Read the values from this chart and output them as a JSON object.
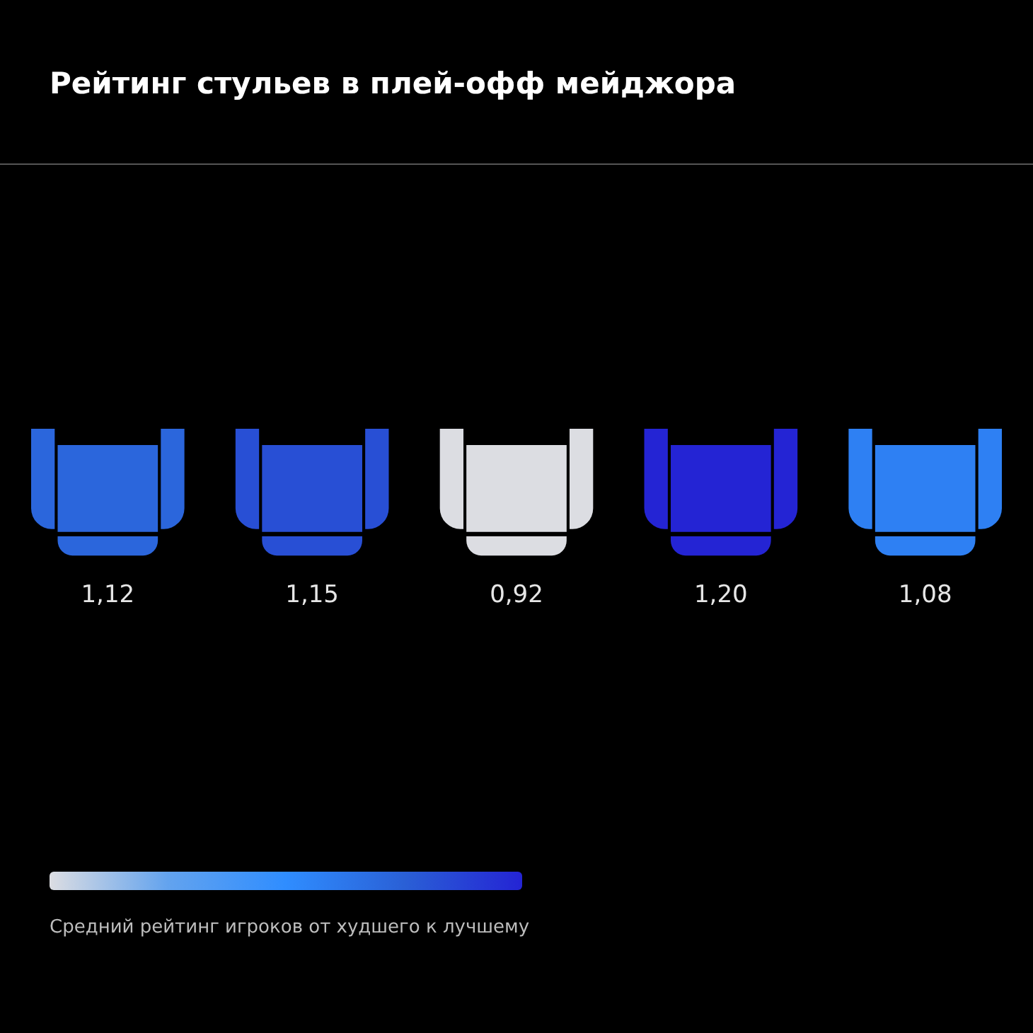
{
  "chart_data": {
    "type": "other",
    "title": "Рейтинг стульев в плей-офф мейджора",
    "categories": [
      null,
      null,
      null,
      null,
      null
    ],
    "values": [
      1.12,
      1.15,
      0.92,
      1.2,
      1.08
    ],
    "value_labels": [
      "1,12",
      "1,15",
      "0,92",
      "1,20",
      "1,08"
    ],
    "colors": [
      "#dcdde2",
      "#63a3ee",
      "#2f8dff",
      "#2a60d6",
      "#2424d4"
    ],
    "annotations": [
      "Средний рейтинг игроков от худшего к лучшему"
    ]
  }
}
